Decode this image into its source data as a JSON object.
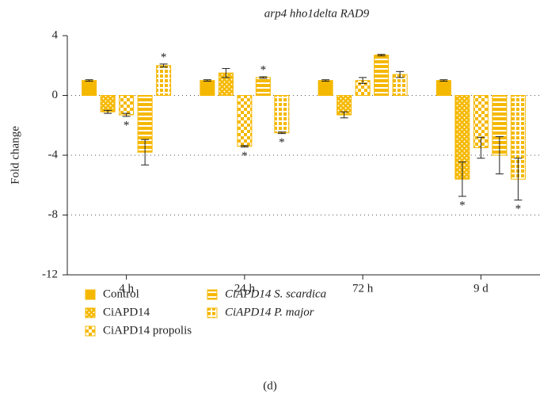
{
  "chart_data": {
    "type": "bar",
    "title": "arp4 hho1delta RAD9",
    "y_label": "Fold change",
    "caption": "(d)",
    "categories": [
      "4 h",
      "24 h",
      "72 h",
      "9 d"
    ],
    "ylim": [
      -12,
      4
    ],
    "yticks": [
      4,
      0,
      -4,
      -8,
      -12
    ],
    "grid": true,
    "series": [
      {
        "name": "Control",
        "color": "#f5b800",
        "pattern": "solid",
        "values": [
          1,
          1,
          1,
          1
        ],
        "errors": [
          0.05,
          0.05,
          0.05,
          0.05
        ],
        "significance": [
          null,
          null,
          null,
          null
        ]
      },
      {
        "name": "CiAPD14",
        "color": "#f5b800",
        "pattern": "dots",
        "values": [
          -1.1,
          1.5,
          -1.3,
          -5.6
        ],
        "errors": [
          0.1,
          0.3,
          0.2,
          1.15
        ],
        "significance": [
          null,
          null,
          null,
          "*"
        ]
      },
      {
        "name": "CiAPD14 propolis",
        "color": "#f5b800",
        "pattern": "checker",
        "values": [
          -1.3,
          -3.4,
          1.0,
          -3.5
        ],
        "errors": [
          0.1,
          0.05,
          0.2,
          0.7
        ],
        "significance": [
          "*",
          "*",
          null,
          null
        ]
      },
      {
        "name": "CiAPD14 S. scardica",
        "color": "#f5b800",
        "pattern": "hstripes",
        "values": [
          -3.8,
          1.2,
          2.7,
          -4.0
        ],
        "errors": [
          0.85,
          0.05,
          0.05,
          1.25
        ],
        "significance": [
          null,
          "*",
          null,
          null
        ]
      },
      {
        "name": "CiAPD14 P. major",
        "color": "#f5b800",
        "pattern": "grid",
        "values": [
          2.0,
          -2.5,
          1.4,
          -5.6
        ],
        "errors": [
          0.1,
          0.05,
          0.2,
          1.4
        ],
        "significance": [
          "*",
          "*",
          null,
          "*"
        ]
      }
    ]
  }
}
